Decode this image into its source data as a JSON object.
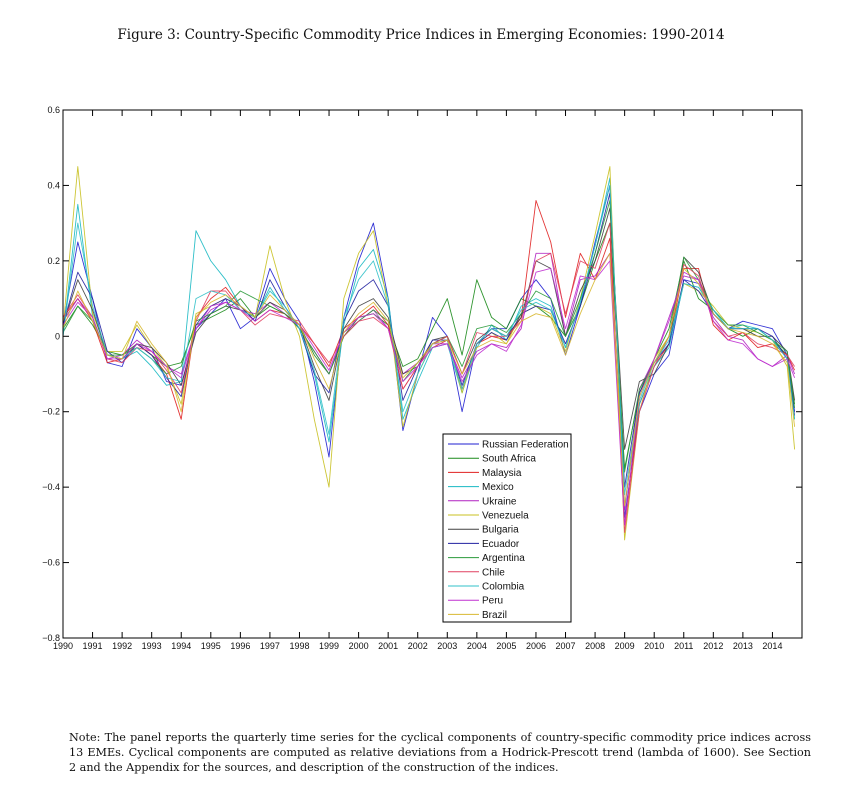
{
  "figure": {
    "title": "Figure 3: Country-Specific Commodity Price Indices in Emerging Economies: 1990-2014",
    "note": "Note: The panel reports the quarterly time series for the cyclical components of country-specific commodity price indices across 13 EMEs. Cyclical components are computed as relative deviations from a Hodrick-Prescott trend (lambda of 1600). See Section 2 and the Appendix for the sources, and description of the construction of the indices."
  },
  "chart_data": {
    "type": "line",
    "title": "Figure 3: Country-Specific Commodity Price Indices in Emerging Economies: 1990-2014",
    "xlabel": "",
    "ylabel": "",
    "xlim": [
      1990,
      2015
    ],
    "ylim": [
      -0.8,
      0.6
    ],
    "grid": false,
    "legend_position": "lower-center",
    "x_ticks": [
      1990,
      1991,
      1992,
      1993,
      1994,
      1995,
      1996,
      1997,
      1998,
      1999,
      2000,
      2001,
      2002,
      2003,
      2004,
      2005,
      2006,
      2007,
      2008,
      2009,
      2010,
      2011,
      2012,
      2013,
      2014
    ],
    "x_tick_labels": [
      "1990",
      "1991",
      "1992",
      "1993",
      "1994",
      "1995",
      "1996",
      "1997",
      "1998",
      "1999",
      "2000",
      "2001",
      "2002",
      "2003",
      "2004",
      "2005",
      "2006",
      "2007",
      "2008",
      "2009",
      "2010",
      "2011",
      "2012",
      "2013",
      "2014"
    ],
    "y_ticks": [
      0.6,
      0.4,
      0.2,
      0,
      -0.2,
      -0.4,
      -0.6,
      -0.8
    ],
    "y_tick_labels": [
      "0.6",
      "0.4",
      "0.2",
      "0",
      "−0.2",
      "−0.4",
      "−0.6",
      "−0.8"
    ],
    "x": [
      1990.0,
      1990.5,
      1991.0,
      1991.5,
      1992.0,
      1992.5,
      1993.0,
      1993.5,
      1994.0,
      1994.5,
      1995.0,
      1995.5,
      1996.0,
      1996.5,
      1997.0,
      1997.5,
      1998.0,
      1998.5,
      1999.0,
      1999.5,
      2000.0,
      2000.5,
      2001.0,
      2001.5,
      2002.0,
      2002.5,
      2003.0,
      2003.5,
      2004.0,
      2004.5,
      2005.0,
      2005.5,
      2006.0,
      2006.5,
      2007.0,
      2007.5,
      2008.0,
      2008.5,
      2009.0,
      2009.5,
      2010.0,
      2010.5,
      2011.0,
      2011.5,
      2012.0,
      2012.5,
      2013.0,
      2013.5,
      2014.0,
      2014.5,
      2014.75
    ],
    "series": [
      {
        "name": "Russian Federation",
        "color": "#1f1fd0",
        "values": [
          0.03,
          0.25,
          0.1,
          -0.07,
          -0.08,
          0.02,
          -0.03,
          -0.12,
          -0.13,
          0.02,
          0.06,
          0.1,
          0.02,
          0.05,
          0.18,
          0.1,
          0.04,
          -0.12,
          -0.32,
          0.05,
          0.2,
          0.3,
          0.1,
          -0.25,
          -0.1,
          0.05,
          0.0,
          -0.2,
          -0.02,
          0.02,
          0.02,
          0.1,
          0.15,
          0.1,
          -0.05,
          0.08,
          0.25,
          0.4,
          -0.48,
          -0.2,
          -0.1,
          -0.05,
          0.15,
          0.14,
          0.06,
          0.02,
          0.04,
          0.03,
          0.02,
          -0.05,
          -0.2
        ]
      },
      {
        "name": "South Africa",
        "color": "#1a8a1a",
        "values": [
          0.02,
          0.08,
          0.03,
          -0.04,
          -0.05,
          -0.02,
          -0.05,
          -0.08,
          -0.07,
          0.03,
          0.05,
          0.07,
          0.1,
          0.05,
          0.08,
          0.06,
          0.03,
          -0.05,
          -0.1,
          0.0,
          0.05,
          0.06,
          0.03,
          -0.08,
          -0.06,
          0.02,
          0.1,
          -0.05,
          0.15,
          0.05,
          0.02,
          0.1,
          0.08,
          0.05,
          0.0,
          0.08,
          0.2,
          0.3,
          -0.35,
          -0.15,
          -0.06,
          0.02,
          0.2,
          0.1,
          0.07,
          0.02,
          0.0,
          0.02,
          -0.01,
          -0.05,
          -0.18
        ]
      },
      {
        "name": "Malaysia",
        "color": "#e02020",
        "values": [
          0.05,
          0.1,
          0.04,
          -0.07,
          -0.06,
          -0.02,
          -0.05,
          -0.1,
          -0.22,
          0.05,
          0.1,
          0.13,
          0.08,
          0.04,
          0.07,
          0.06,
          0.03,
          -0.02,
          -0.08,
          0.02,
          0.05,
          0.08,
          0.03,
          -0.14,
          -0.08,
          -0.03,
          -0.01,
          -0.14,
          -0.02,
          0.0,
          -0.01,
          0.05,
          0.36,
          0.25,
          0.05,
          0.22,
          0.15,
          0.26,
          -0.5,
          -0.18,
          -0.08,
          -0.02,
          0.18,
          0.18,
          0.03,
          -0.01,
          0.01,
          -0.03,
          -0.02,
          -0.05,
          -0.09
        ]
      },
      {
        "name": "Mexico",
        "color": "#17b8c2",
        "values": [
          0.0,
          0.35,
          0.05,
          -0.05,
          -0.06,
          -0.04,
          -0.08,
          -0.13,
          -0.12,
          0.28,
          0.2,
          0.15,
          0.08,
          0.05,
          0.13,
          0.07,
          0.02,
          -0.1,
          -0.28,
          0.03,
          0.18,
          0.23,
          0.1,
          -0.22,
          -0.12,
          -0.03,
          -0.02,
          -0.15,
          -0.03,
          0.03,
          -0.01,
          0.08,
          0.1,
          0.08,
          -0.03,
          0.09,
          0.24,
          0.42,
          -0.45,
          -0.18,
          -0.08,
          -0.03,
          0.14,
          0.13,
          0.07,
          0.02,
          0.03,
          0.02,
          -0.01,
          -0.06,
          -0.22
        ]
      },
      {
        "name": "Ukraine",
        "color": "#b020c0",
        "values": [
          0.04,
          0.1,
          0.05,
          -0.06,
          -0.05,
          -0.01,
          -0.04,
          -0.08,
          -0.1,
          0.02,
          0.07,
          0.09,
          0.07,
          0.06,
          0.09,
          0.06,
          0.02,
          -0.04,
          -0.1,
          0.01,
          0.04,
          0.07,
          0.02,
          -0.1,
          -0.07,
          -0.02,
          -0.02,
          -0.11,
          -0.04,
          -0.02,
          -0.03,
          0.02,
          0.22,
          0.22,
          0.0,
          0.15,
          0.16,
          0.22,
          -0.46,
          -0.14,
          -0.06,
          0.05,
          0.16,
          0.15,
          0.05,
          0.0,
          -0.01,
          -0.06,
          -0.08,
          -0.05,
          -0.1
        ]
      },
      {
        "name": "Venezuela",
        "color": "#c8c020",
        "values": [
          0.02,
          0.45,
          0.06,
          -0.04,
          -0.04,
          0.03,
          -0.03,
          -0.08,
          -0.18,
          0.06,
          0.08,
          0.1,
          0.08,
          0.05,
          0.24,
          0.1,
          0.0,
          -0.22,
          -0.4,
          0.1,
          0.22,
          0.28,
          0.08,
          -0.24,
          -0.1,
          -0.02,
          0.0,
          -0.15,
          -0.02,
          0.01,
          -0.02,
          0.06,
          0.08,
          0.06,
          -0.04,
          0.1,
          0.27,
          0.45,
          -0.54,
          -0.2,
          -0.06,
          0.0,
          0.14,
          0.12,
          0.08,
          0.03,
          0.02,
          0.01,
          -0.01,
          -0.08,
          -0.3
        ]
      },
      {
        "name": "Bulgaria",
        "color": "#404040",
        "values": [
          0.03,
          0.15,
          0.07,
          -0.05,
          -0.06,
          -0.02,
          -0.03,
          -0.07,
          -0.13,
          0.01,
          0.06,
          0.08,
          0.07,
          0.05,
          0.09,
          0.07,
          0.03,
          -0.08,
          -0.17,
          0.02,
          0.08,
          0.1,
          0.05,
          -0.1,
          -0.08,
          -0.01,
          0.0,
          -0.1,
          -0.01,
          0.02,
          0.0,
          0.05,
          0.2,
          0.18,
          0.0,
          0.12,
          0.2,
          0.34,
          -0.3,
          -0.12,
          -0.1,
          -0.02,
          0.21,
          0.17,
          0.06,
          0.02,
          0.02,
          0.0,
          0.0,
          -0.04,
          -0.17
        ]
      },
      {
        "name": "Ecuador",
        "color": "#2020a0",
        "values": [
          0.03,
          0.17,
          0.1,
          -0.04,
          -0.07,
          -0.02,
          -0.05,
          -0.11,
          -0.16,
          0.03,
          0.08,
          0.1,
          0.08,
          0.04,
          0.15,
          0.08,
          0.02,
          -0.1,
          -0.15,
          0.04,
          0.12,
          0.15,
          0.08,
          -0.17,
          -0.08,
          -0.01,
          -0.01,
          -0.13,
          -0.02,
          0.01,
          -0.01,
          0.06,
          0.08,
          0.07,
          -0.02,
          0.08,
          0.22,
          0.38,
          -0.4,
          -0.15,
          -0.07,
          -0.02,
          0.15,
          0.12,
          0.06,
          0.02,
          0.02,
          0.02,
          0.0,
          -0.06,
          -0.21
        ]
      },
      {
        "name": "Argentina",
        "color": "#2a9a3a",
        "values": [
          0.01,
          0.08,
          0.04,
          -0.05,
          -0.05,
          -0.03,
          -0.06,
          -0.1,
          -0.08,
          0.04,
          0.06,
          0.08,
          0.12,
          0.1,
          0.08,
          0.06,
          0.02,
          -0.04,
          -0.1,
          0.0,
          0.04,
          0.07,
          0.04,
          -0.12,
          -0.07,
          -0.02,
          0.0,
          -0.08,
          0.02,
          0.03,
          0.01,
          0.06,
          0.12,
          0.1,
          0.0,
          0.1,
          0.22,
          0.36,
          -0.36,
          -0.14,
          -0.07,
          0.0,
          0.21,
          0.15,
          0.07,
          0.03,
          0.03,
          0.01,
          -0.01,
          -0.04,
          -0.19
        ]
      },
      {
        "name": "Chile",
        "color": "#e04060",
        "values": [
          0.05,
          0.11,
          0.05,
          -0.06,
          -0.07,
          -0.03,
          -0.04,
          -0.09,
          -0.15,
          0.04,
          0.12,
          0.12,
          0.07,
          0.03,
          0.06,
          0.05,
          0.04,
          -0.02,
          -0.07,
          0.0,
          0.04,
          0.05,
          0.02,
          -0.14,
          -0.08,
          -0.02,
          0.0,
          -0.1,
          0.01,
          0.0,
          0.0,
          0.04,
          0.2,
          0.22,
          0.06,
          0.2,
          0.18,
          0.3,
          -0.52,
          -0.2,
          -0.08,
          0.0,
          0.19,
          0.16,
          0.04,
          0.0,
          0.01,
          -0.02,
          -0.03,
          -0.05,
          -0.08
        ]
      },
      {
        "name": "Colombia",
        "color": "#30c0c8",
        "values": [
          0.0,
          0.3,
          0.08,
          -0.05,
          -0.06,
          -0.03,
          -0.06,
          -0.11,
          -0.12,
          0.1,
          0.12,
          0.11,
          0.07,
          0.05,
          0.12,
          0.08,
          0.02,
          -0.09,
          -0.26,
          0.05,
          0.15,
          0.2,
          0.08,
          -0.2,
          -0.1,
          -0.02,
          -0.01,
          -0.14,
          -0.02,
          0.02,
          0.0,
          0.07,
          0.09,
          0.07,
          -0.03,
          0.09,
          0.24,
          0.4,
          -0.42,
          -0.17,
          -0.07,
          -0.01,
          0.14,
          0.13,
          0.07,
          0.02,
          0.02,
          0.02,
          -0.01,
          -0.06,
          -0.22
        ]
      },
      {
        "name": "Peru",
        "color": "#c030d0",
        "values": [
          0.03,
          0.09,
          0.05,
          -0.06,
          -0.06,
          -0.02,
          -0.04,
          -0.08,
          -0.11,
          0.02,
          0.08,
          0.09,
          0.07,
          0.04,
          0.07,
          0.05,
          0.03,
          -0.03,
          -0.09,
          0.01,
          0.05,
          0.06,
          0.02,
          -0.12,
          -0.08,
          -0.03,
          -0.02,
          -0.12,
          -0.05,
          -0.02,
          -0.04,
          0.03,
          0.17,
          0.18,
          0.02,
          0.16,
          0.15,
          0.2,
          -0.5,
          -0.16,
          -0.06,
          0.04,
          0.17,
          0.15,
          0.04,
          -0.01,
          -0.02,
          -0.06,
          -0.08,
          -0.06,
          -0.11
        ]
      },
      {
        "name": "Brazil",
        "color": "#d8b830",
        "values": [
          0.02,
          0.12,
          0.04,
          -0.05,
          -0.06,
          0.04,
          -0.02,
          -0.07,
          -0.2,
          0.05,
          0.09,
          0.11,
          0.08,
          0.05,
          0.11,
          0.07,
          0.03,
          -0.06,
          -0.14,
          0.01,
          0.06,
          0.09,
          0.04,
          -0.11,
          -0.07,
          -0.02,
          -0.01,
          -0.1,
          -0.03,
          -0.01,
          -0.02,
          0.04,
          0.06,
          0.05,
          -0.05,
          0.06,
          0.15,
          0.22,
          -0.45,
          -0.16,
          -0.07,
          0.0,
          0.18,
          0.14,
          0.06,
          0.02,
          0.01,
          0.0,
          -0.02,
          -0.07,
          -0.24
        ]
      }
    ]
  }
}
